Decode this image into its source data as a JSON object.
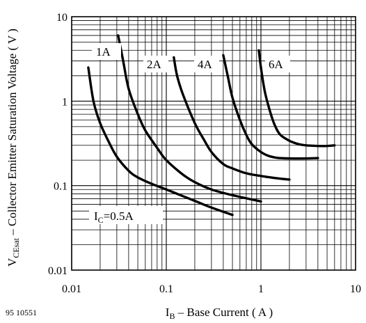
{
  "figure_id": "95 10551",
  "chart_data": {
    "type": "line",
    "x_scale": "log",
    "y_scale": "log",
    "xlim": [
      0.01,
      10
    ],
    "ylim": [
      0.01,
      10
    ],
    "x_tick_labels": [
      "0.01",
      "0.1",
      "1",
      "10"
    ],
    "y_tick_labels": [
      "0.01",
      "0.1",
      "1",
      "10"
    ],
    "x_tick_values": [
      0.01,
      0.1,
      1,
      10
    ],
    "y_tick_values": [
      0.01,
      0.1,
      1,
      10
    ],
    "xlabel": {
      "main": "I",
      "sub": "B",
      "rest": " – Base Current ( A )"
    },
    "ylabel": {
      "main": "V",
      "sub": "CEsat",
      "rest": " – Collector Emitter Saturation Voltage ( V )"
    },
    "grid": true,
    "series": [
      {
        "name": "Iₓ=0.5A",
        "label": {
          "main": "I",
          "sub": "C",
          "rest": "=0.5A"
        },
        "x": [
          0.015,
          0.017,
          0.02,
          0.025,
          0.03,
          0.04,
          0.05,
          0.07,
          0.1,
          0.15,
          0.2,
          0.3,
          0.5
        ],
        "y": [
          2.5,
          1.0,
          0.55,
          0.32,
          0.22,
          0.15,
          0.125,
          0.105,
          0.09,
          0.075,
          0.066,
          0.055,
          0.045
        ]
      },
      {
        "name": "1A",
        "label": {
          "main": "1A",
          "sub": "",
          "rest": ""
        },
        "x": [
          0.031,
          0.035,
          0.04,
          0.05,
          0.06,
          0.08,
          0.1,
          0.15,
          0.2,
          0.3,
          0.5,
          1.0
        ],
        "y": [
          6.0,
          3.0,
          1.4,
          0.7,
          0.45,
          0.28,
          0.2,
          0.135,
          0.11,
          0.09,
          0.077,
          0.065
        ]
      },
      {
        "name": "2A",
        "label": {
          "main": "2A",
          "sub": "",
          "rest": ""
        },
        "x": [
          0.12,
          0.13,
          0.15,
          0.2,
          0.25,
          0.3,
          0.4,
          0.5,
          0.7,
          1.0,
          1.5,
          2.0
        ],
        "y": [
          3.3,
          2.0,
          1.2,
          0.55,
          0.35,
          0.25,
          0.18,
          0.16,
          0.14,
          0.13,
          0.122,
          0.118
        ]
      },
      {
        "name": "4A",
        "label": {
          "main": "4A",
          "sub": "",
          "rest": ""
        },
        "x": [
          0.4,
          0.45,
          0.5,
          0.6,
          0.7,
          0.8,
          1.0,
          1.2,
          1.5,
          2.0,
          3.0,
          4.0
        ],
        "y": [
          3.5,
          1.9,
          1.1,
          0.6,
          0.4,
          0.31,
          0.25,
          0.225,
          0.213,
          0.21,
          0.21,
          0.212
        ]
      },
      {
        "name": "6A",
        "label": {
          "main": "6A",
          "sub": "",
          "rest": ""
        },
        "x": [
          0.95,
          1.0,
          1.1,
          1.25,
          1.4,
          1.6,
          2.0,
          2.5,
          3.0,
          4.0,
          5.0,
          6.0
        ],
        "y": [
          4.0,
          2.5,
          1.3,
          0.75,
          0.52,
          0.4,
          0.34,
          0.31,
          0.3,
          0.295,
          0.295,
          0.3
        ]
      }
    ]
  }
}
